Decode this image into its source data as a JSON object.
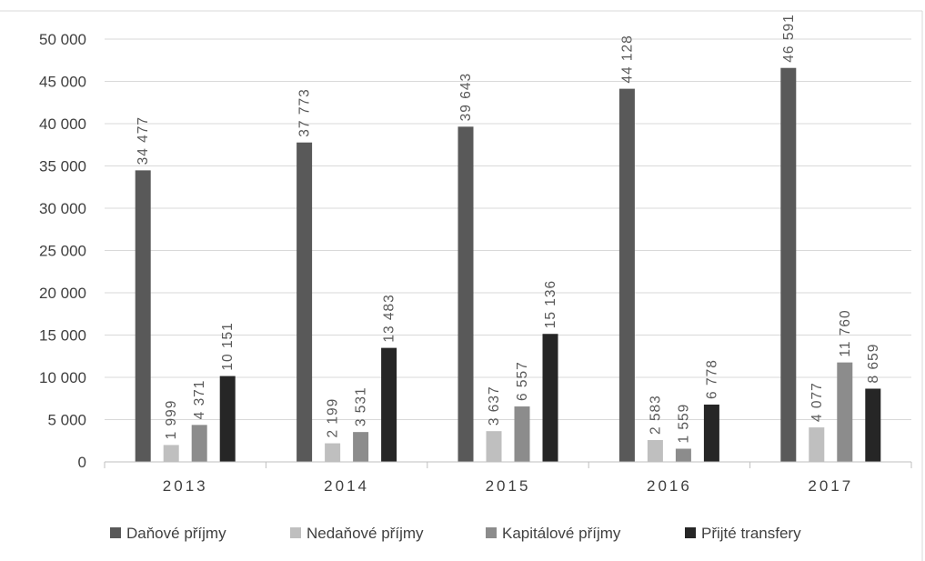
{
  "chart_data": {
    "type": "bar",
    "categories": [
      "2013",
      "2014",
      "2015",
      "2016",
      "2017"
    ],
    "series": [
      {
        "name": "Daňové příjmy",
        "color": "#595959",
        "values": [
          34477,
          37773,
          39643,
          44128,
          46591
        ],
        "labels": [
          "34 477",
          "37 773",
          "39 643",
          "44 128",
          "46 591"
        ]
      },
      {
        "name": "Nedaňové příjmy",
        "color": "#bfbfbf",
        "values": [
          1999,
          2199,
          3637,
          2583,
          4077
        ],
        "labels": [
          "1 999",
          "2 199",
          "3 637",
          "2 583",
          "4 077"
        ]
      },
      {
        "name": "Kapitálové příjmy",
        "color": "#8c8c8c",
        "values": [
          4371,
          3531,
          6557,
          1559,
          11760
        ],
        "labels": [
          "4 371",
          "3 531",
          "6 557",
          "1 559",
          "11 760"
        ]
      },
      {
        "name": "Přijté transfery",
        "color": "#262626",
        "values": [
          10151,
          13483,
          15136,
          6778,
          8659
        ],
        "labels": [
          "10 151",
          "13 483",
          "15 136",
          "6 778",
          "8 659"
        ]
      }
    ],
    "y_ticks": [
      0,
      5000,
      10000,
      15000,
      20000,
      25000,
      30000,
      35000,
      40000,
      45000,
      50000
    ],
    "y_tick_labels": [
      "0",
      "5 000",
      "10 000",
      "15 000",
      "20 000",
      "25 000",
      "30 000",
      "35 000",
      "40 000",
      "45 000",
      "50 000"
    ],
    "ylim": [
      0,
      50000
    ],
    "grid": true,
    "legend": "bottom"
  }
}
